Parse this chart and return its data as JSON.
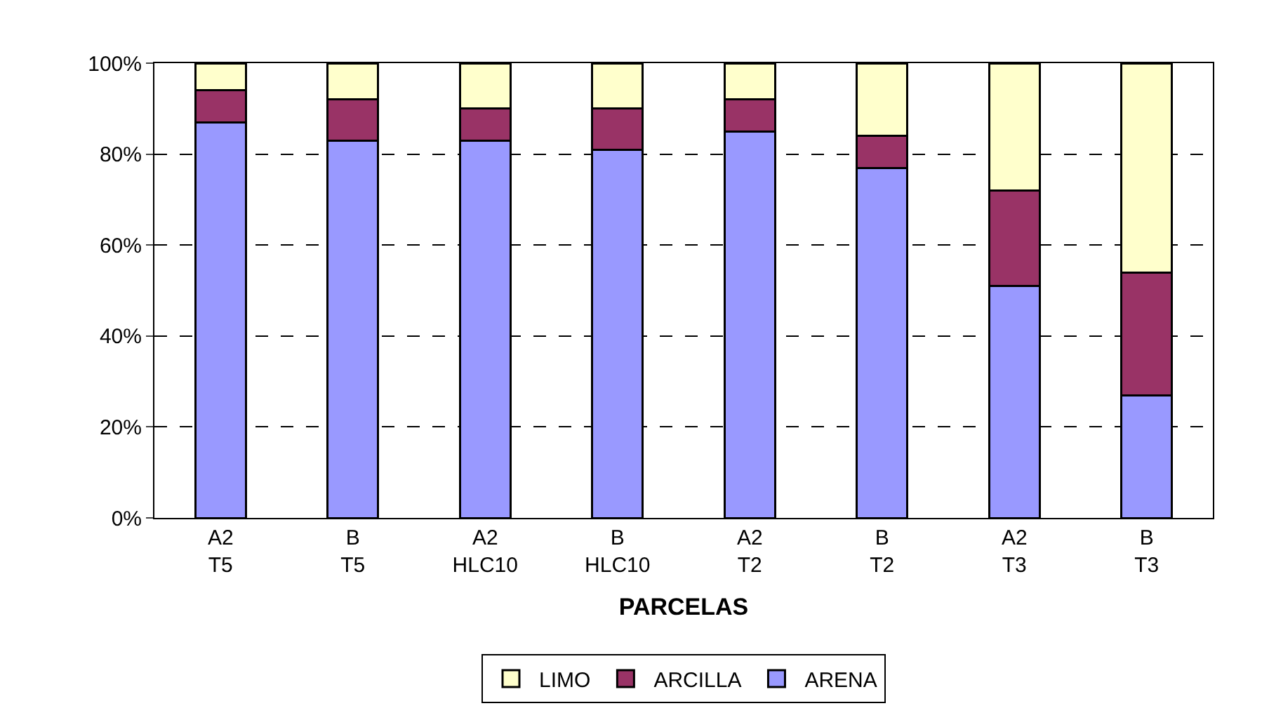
{
  "chart_data": {
    "type": "bar",
    "stacked": true,
    "xlabel": "PARCELAS",
    "categories": [
      "A2\nT5",
      "B\nT5",
      "A2\nHLC10",
      "B\nHLC10",
      "A2\nT2",
      "B\nT2",
      "A2\nT3",
      "B\nT3"
    ],
    "series": [
      {
        "name": "ARENA",
        "color": "#9999ff",
        "values": [
          87,
          83,
          83,
          81,
          85,
          77,
          51,
          27
        ]
      },
      {
        "name": "ARCILLA",
        "color": "#993366",
        "values": [
          7,
          9,
          7,
          9,
          7,
          7,
          21,
          27
        ]
      },
      {
        "name": "LIMO",
        "color": "#ffffcc",
        "values": [
          6,
          8,
          10,
          10,
          8,
          16,
          28,
          46
        ]
      }
    ],
    "ylim": [
      0,
      100
    ],
    "yticks": [
      {
        "value": 0,
        "label": "0%"
      },
      {
        "value": 20,
        "label": "20%"
      },
      {
        "value": 40,
        "label": "40%"
      },
      {
        "value": 60,
        "label": "60%"
      },
      {
        "value": 80,
        "label": "80%"
      },
      {
        "value": 100,
        "label": "100%"
      }
    ],
    "grid": "y",
    "legend": "bottom"
  }
}
